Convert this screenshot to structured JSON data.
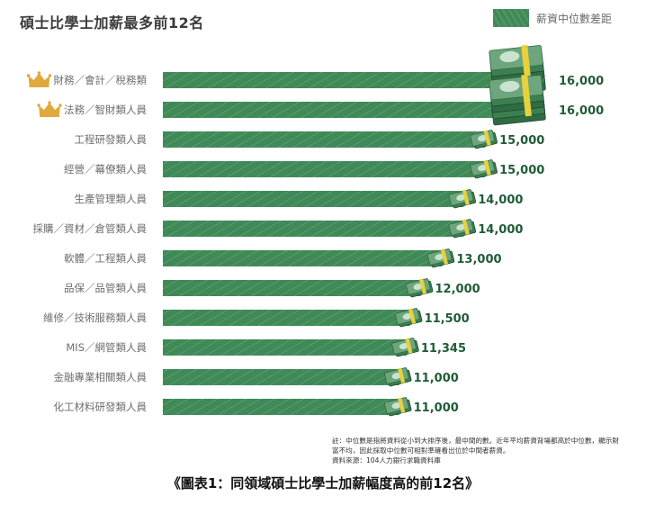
{
  "title": "碩士比學士加薪最多前12名",
  "legend": {
    "label": "薪資中位數差距",
    "color": "#3f8a57"
  },
  "colors": {
    "bar": "#3f8a57",
    "value_text": "#1f5c35",
    "label_text": "#6d6d6d",
    "crown": "#e0a93b",
    "money": "#6ea57c",
    "band": "#e7d13c"
  },
  "chart_data": {
    "type": "bar",
    "orientation": "horizontal",
    "title": "碩士比學士加薪最多前12名",
    "xlabel": "",
    "ylabel": "",
    "xlim": [
      0,
      16000
    ],
    "categories": [
      "財務／會計／稅務類",
      "法務／智財類人員",
      "工程研發類人員",
      "經營／幕僚類人員",
      "生產管理類人員",
      "採購／資材／倉管類人員",
      "軟體／工程類人員",
      "品保／品管類人員",
      "維修／技術服務類人員",
      "MIS／網管類人員",
      "金融專業相關類人員",
      "化工材料研發類人員"
    ],
    "values": [
      16000,
      16000,
      15000,
      15000,
      14000,
      14000,
      13000,
      12000,
      11500,
      11345,
      11000,
      11000
    ],
    "value_labels": [
      "16,000",
      "16,000",
      "15,000",
      "15,000",
      "14,000",
      "14,000",
      "13,000",
      "12,000",
      "11,500",
      "11,345",
      "11,000",
      "11,000"
    ],
    "crowned": [
      true,
      true,
      false,
      false,
      false,
      false,
      false,
      false,
      false,
      false,
      false,
      false
    ],
    "icons": [
      "crown-icon",
      "money-stack-icon",
      "money-bundle-icon"
    ]
  },
  "note": {
    "line1": "註：中位數是指將資料從小到大排序後，最中間的數。近年平均薪資背場都高於中位數，顯示財富不均，因此採取中位數可相對準確看出位於中間者薪資。",
    "line2": "資料來源：104人力銀行求職資料庫"
  },
  "caption": "《圖表1：同領域碩士比學士加薪幅度高的前12名》"
}
